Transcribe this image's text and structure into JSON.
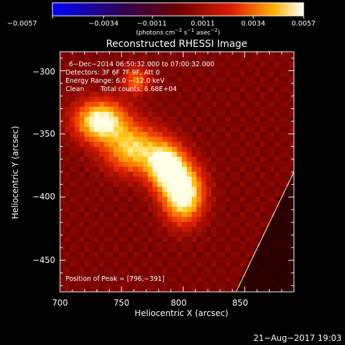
{
  "chart_data": {
    "type": "heatmap",
    "title": "Reconstructed RHESSI Image",
    "colorbar": {
      "tick_labels": [
        "−0.0057",
        "−0.0034",
        "−0.0011",
        "0.0011",
        "0.0034",
        "0.0057"
      ],
      "range": [
        -0.0057,
        0.0057
      ],
      "unit_label_parts": [
        "(photons cm",
        "−2",
        " s",
        "−1",
        " asec",
        "−2",
        ")"
      ]
    },
    "annotations": {
      "time": "6−Dec−2014 06:50:32.000 to 07:00:32.000",
      "detectors": "Detectors: 3F 6F 7F 9F, Att 0",
      "energy": "Energy Range: 6.0 − 12.0 keV",
      "clean": "Clean",
      "counts": "Total counts: 6.68E+04",
      "peak": "Position of Peak = [796,−391]"
    },
    "xlabel": "Heliocentric X (arcsec)",
    "ylabel": "Heliocentric Y (arcsec)",
    "xlim": [
      700,
      890
    ],
    "ylim": [
      -475,
      -285
    ],
    "x_ticks": [
      700,
      750,
      800,
      850
    ],
    "y_ticks": [
      -300,
      -350,
      -400,
      -450
    ],
    "x_tick_labels": [
      "700",
      "750",
      "800",
      "850"
    ],
    "y_tick_labels": [
      "−300",
      "−350",
      "−400",
      "−450"
    ],
    "peak": [
      796,
      -391
    ],
    "limb_line": [
      [
        843,
        -475
      ],
      [
        890,
        -380
      ]
    ],
    "sources": [
      {
        "x": 733,
        "y": -340,
        "sx": 14,
        "sy": 11,
        "amp": 0.9
      },
      {
        "x": 760,
        "y": -362,
        "sx": 16,
        "sy": 13,
        "amp": 0.7
      },
      {
        "x": 786,
        "y": -376,
        "sx": 10,
        "sy": 12,
        "amp": 0.92
      },
      {
        "x": 800,
        "y": -397,
        "sx": 11,
        "sy": 15,
        "amp": 1.0
      },
      {
        "x": 762,
        "y": -308,
        "sx": 7,
        "sy": 7,
        "amp": 0.45
      }
    ],
    "background_level": 0.33
  },
  "footer": {
    "timestamp": "21−Aug−2017 19:03"
  }
}
